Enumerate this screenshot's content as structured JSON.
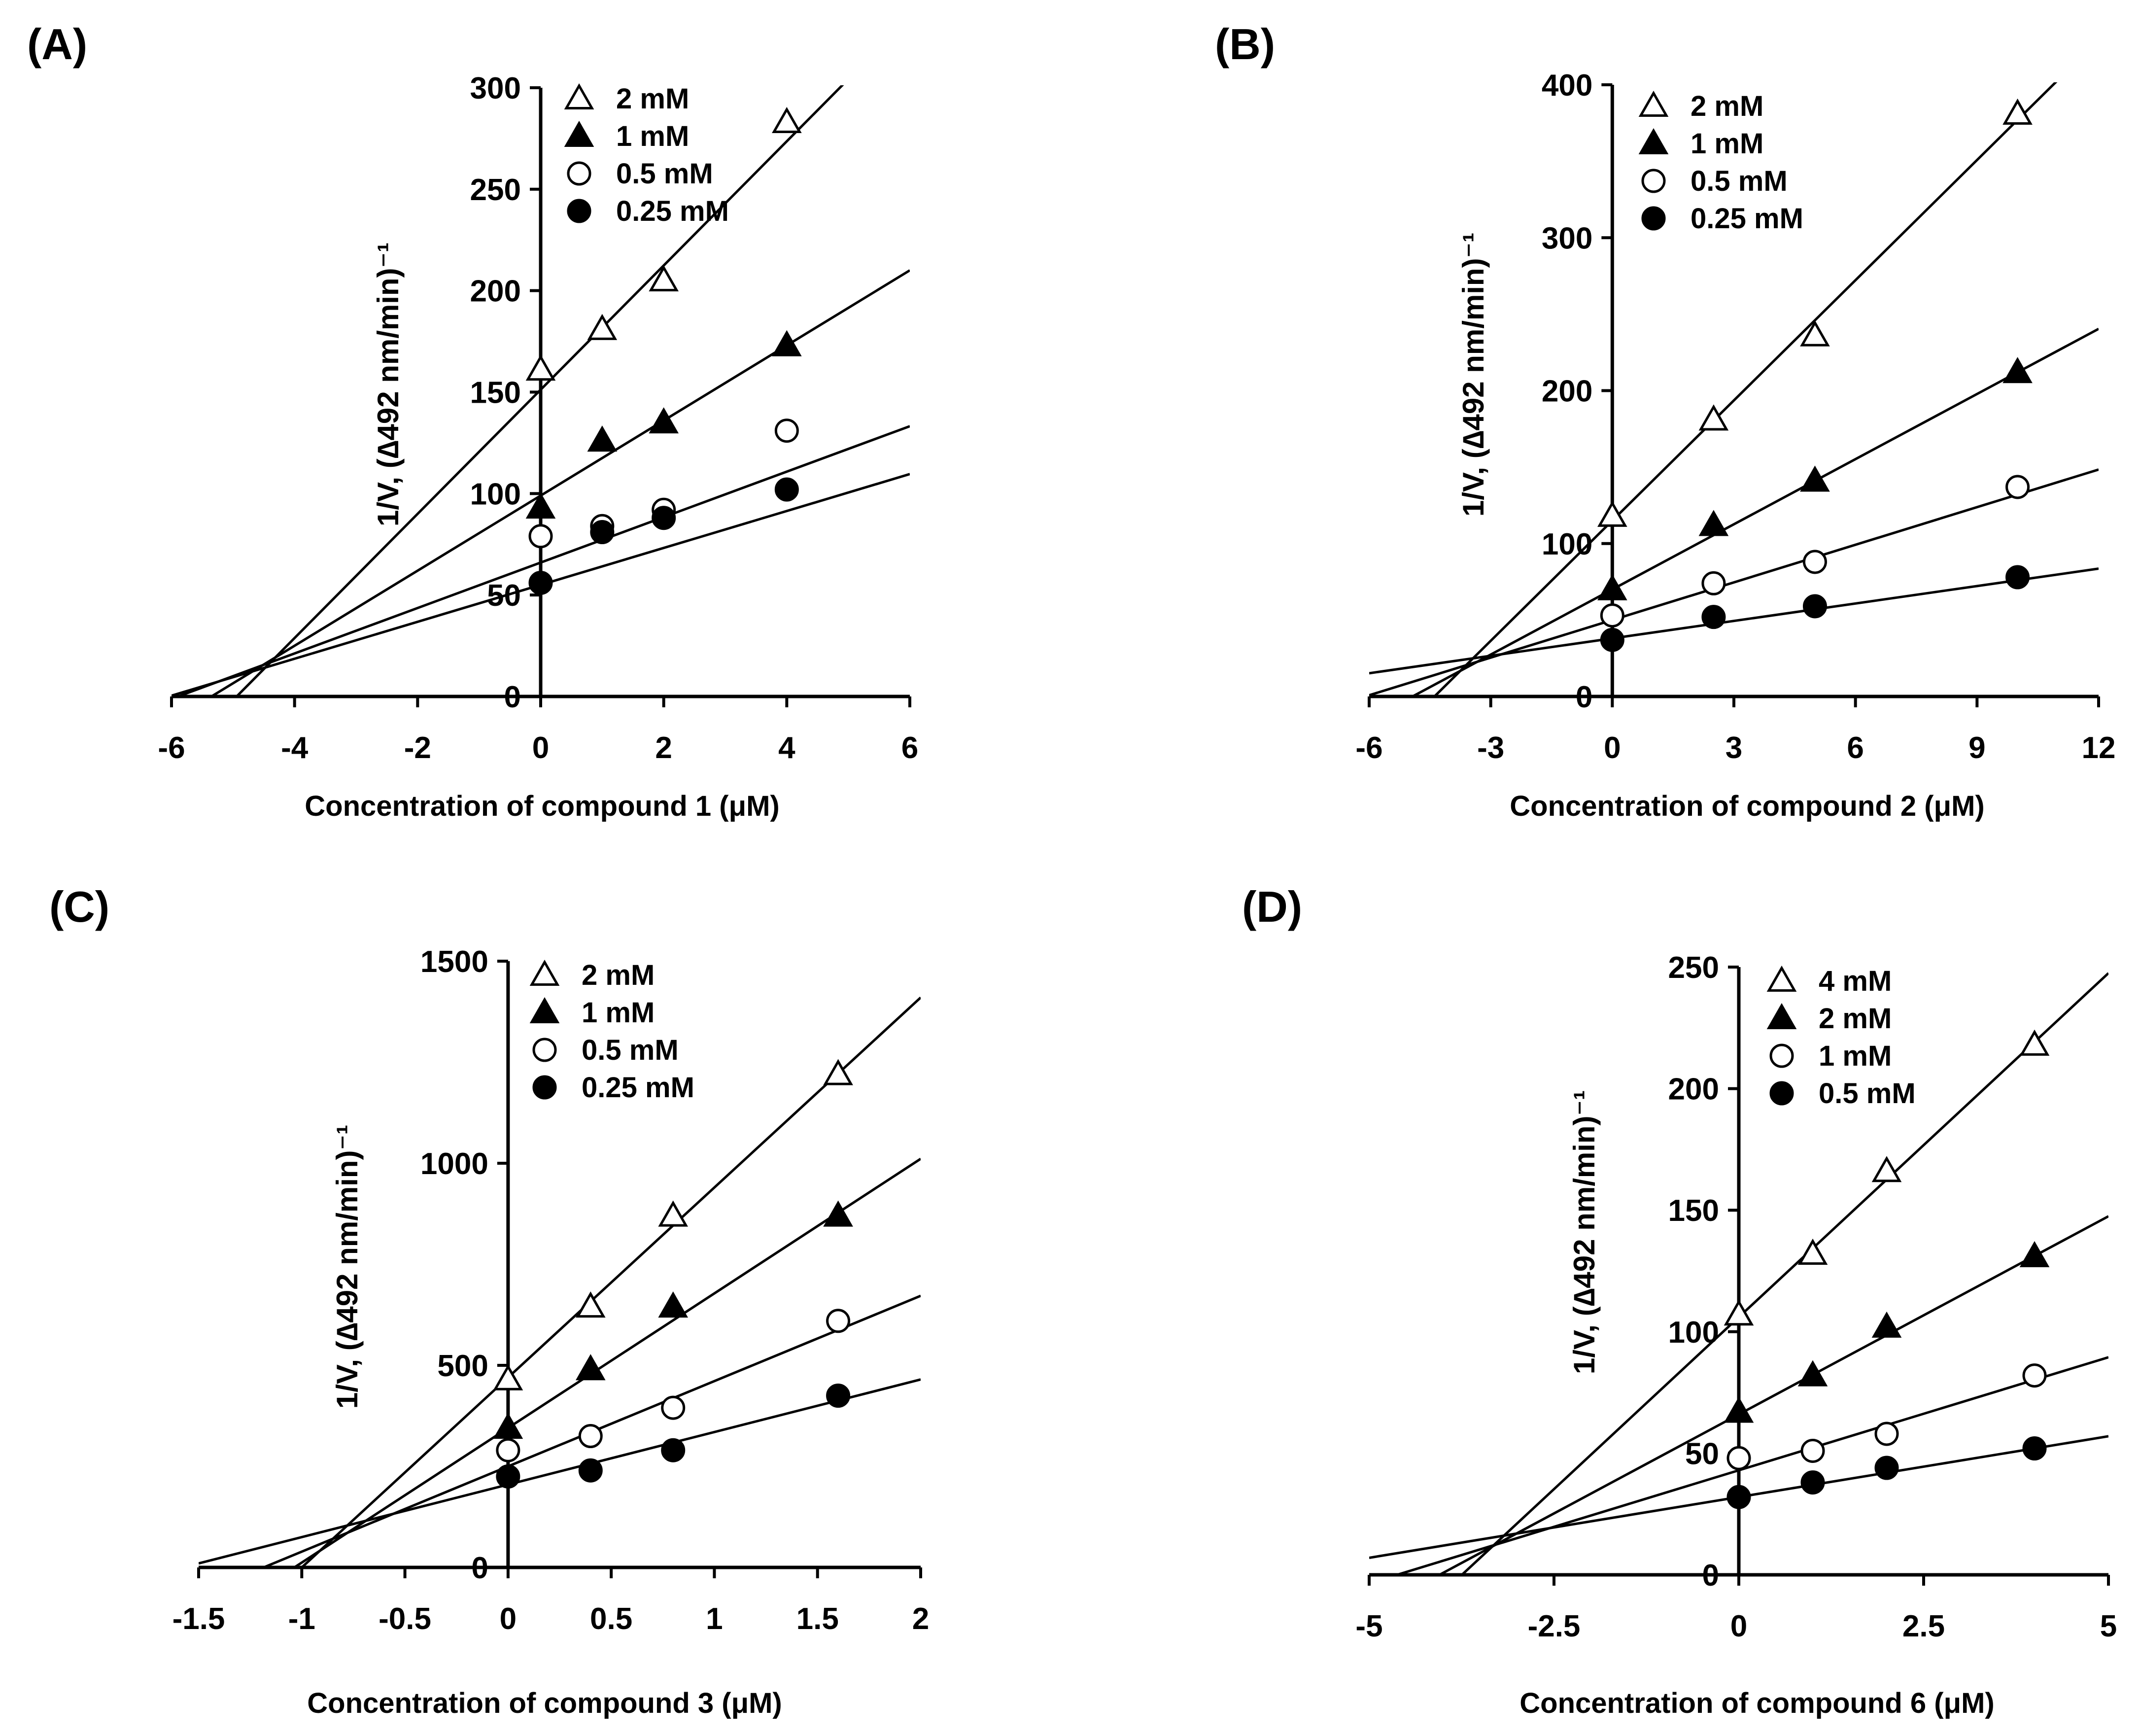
{
  "chart_data": [
    {
      "type": "scatter",
      "panel": "(A)",
      "xlabel": "Concentration of compound 1 (μM)",
      "ylabel": "1/V, (∆492 nm/min)⁻¹",
      "xlim": [
        -6,
        6
      ],
      "ylim": [
        0,
        300
      ],
      "xticks": [
        -6,
        -4,
        -2,
        0,
        2,
        4,
        6
      ],
      "yticks": [
        0,
        50,
        100,
        150,
        200,
        250,
        300
      ],
      "legend_location": "top-left",
      "series": [
        {
          "name": "2 mM",
          "marker": "triangle-open",
          "x": [
            0,
            1,
            2,
            4
          ],
          "y": [
            161,
            181,
            205,
            283
          ],
          "fit": {
            "slope": 30.6,
            "intercept": 151.2
          }
        },
        {
          "name": "1 mM",
          "marker": "triangle-filled",
          "x": [
            0,
            1,
            2,
            4
          ],
          "y": [
            93,
            126,
            135,
            173
          ],
          "fit": {
            "slope": 18.5,
            "intercept": 99
          }
        },
        {
          "name": "0.5 mM",
          "marker": "circle-open",
          "x": [
            0,
            1,
            2,
            4
          ],
          "y": [
            79,
            84,
            92,
            131
          ],
          "fit": {
            "slope": 11.2,
            "intercept": 66
          }
        },
        {
          "name": "0.25 mM",
          "marker": "circle-filled",
          "x": [
            0,
            1,
            2,
            4
          ],
          "y": [
            56,
            81,
            88,
            102
          ],
          "fit": {
            "slope": 9.1,
            "intercept": 55
          }
        }
      ]
    },
    {
      "type": "scatter",
      "panel": "(B)",
      "xlabel": "Concentration of compound 2 (μM)",
      "ylabel": "1/V, (∆492 nm/min)⁻¹",
      "xlim": [
        -6,
        12
      ],
      "ylim": [
        0,
        400
      ],
      "xticks": [
        -6,
        -3,
        0,
        3,
        6,
        9,
        12
      ],
      "yticks": [
        0,
        100,
        200,
        300,
        400
      ],
      "legend_location": "top-left",
      "series": [
        {
          "name": "2 mM",
          "marker": "triangle-open",
          "x": [
            0,
            2.5,
            5,
            10
          ],
          "y": [
            118,
            181,
            236,
            381
          ],
          "fit": {
            "slope": 26.2,
            "intercept": 115
          }
        },
        {
          "name": "1 mM",
          "marker": "triangle-filled",
          "x": [
            0,
            2.5,
            5,
            10
          ],
          "y": [
            70,
            112,
            141,
            212
          ],
          "fit": {
            "slope": 14.2,
            "intercept": 70
          }
        },
        {
          "name": "0.5 mM",
          "marker": "circle-open",
          "x": [
            0,
            2.5,
            5,
            10
          ],
          "y": [
            53,
            74,
            88,
            137
          ],
          "fit": {
            "slope": 8.2,
            "intercept": 50
          }
        },
        {
          "name": "0.25 mM",
          "marker": "circle-filled",
          "x": [
            0,
            2.5,
            5,
            10
          ],
          "y": [
            37,
            52,
            59,
            78
          ],
          "fit": {
            "slope": 3.8,
            "intercept": 38
          }
        }
      ]
    },
    {
      "type": "scatter",
      "panel": "(C)",
      "xlabel": "Concentration of compound 3 (μM)",
      "ylabel": "1/V, (∆492 nm/min)⁻¹",
      "xlim": [
        -1.5,
        2
      ],
      "ylim": [
        0,
        1500
      ],
      "xticks": [
        -1.5,
        -1,
        -0.5,
        0,
        0.5,
        1,
        1.5,
        2
      ],
      "yticks": [
        0,
        500,
        1000,
        1500
      ],
      "legend_location": "top-left",
      "series": [
        {
          "name": "2 mM",
          "marker": "triangle-open",
          "x": [
            0,
            0.4,
            0.8,
            1.6
          ],
          "y": [
            465,
            645,
            870,
            1220
          ],
          "fit": {
            "slope": 470,
            "intercept": 470
          }
        },
        {
          "name": "1 mM",
          "marker": "triangle-filled",
          "x": [
            0,
            0.4,
            0.8,
            1.6
          ],
          "y": [
            345,
            490,
            645,
            870
          ],
          "fit": {
            "slope": 333,
            "intercept": 345
          }
        },
        {
          "name": "0.5 mM",
          "marker": "circle-open",
          "x": [
            0,
            0.4,
            0.8,
            1.6
          ],
          "y": [
            290,
            325,
            395,
            610
          ],
          "fit": {
            "slope": 211,
            "intercept": 250
          }
        },
        {
          "name": "0.25 mM",
          "marker": "circle-filled",
          "x": [
            0,
            0.4,
            0.8,
            1.6
          ],
          "y": [
            225,
            240,
            290,
            425
          ],
          "fit": {
            "slope": 130,
            "intercept": 205
          }
        }
      ]
    },
    {
      "type": "scatter",
      "panel": "(D)",
      "xlabel": "Concentration of compound 6 (μM)",
      "ylabel": "1/V, (∆492 nm/min)⁻¹",
      "xlim": [
        -5,
        5
      ],
      "ylim": [
        0,
        250
      ],
      "xticks": [
        -5,
        -2.5,
        0,
        2.5,
        5
      ],
      "yticks": [
        0,
        50,
        100,
        150,
        200,
        250
      ],
      "legend_location": "top-left",
      "series": [
        {
          "name": "4 mM",
          "marker": "triangle-open",
          "x": [
            0,
            1,
            2,
            4
          ],
          "y": [
            107,
            132,
            166,
            218
          ],
          "fit": {
            "slope": 28.3,
            "intercept": 106
          }
        },
        {
          "name": "2 mM",
          "marker": "triangle-filled",
          "x": [
            0,
            1,
            2,
            4
          ],
          "y": [
            67,
            82,
            102,
            131
          ],
          "fit": {
            "slope": 16.3,
            "intercept": 66
          }
        },
        {
          "name": "1 mM",
          "marker": "circle-open",
          "x": [
            0,
            1,
            2,
            4
          ],
          "y": [
            48,
            51,
            58,
            82
          ],
          "fit": {
            "slope": 9.3,
            "intercept": 43
          }
        },
        {
          "name": "0.5 mM",
          "marker": "circle-filled",
          "x": [
            0,
            1,
            2,
            4
          ],
          "y": [
            32,
            38,
            44,
            52
          ],
          "fit": {
            "slope": 5,
            "intercept": 32
          }
        }
      ]
    }
  ]
}
